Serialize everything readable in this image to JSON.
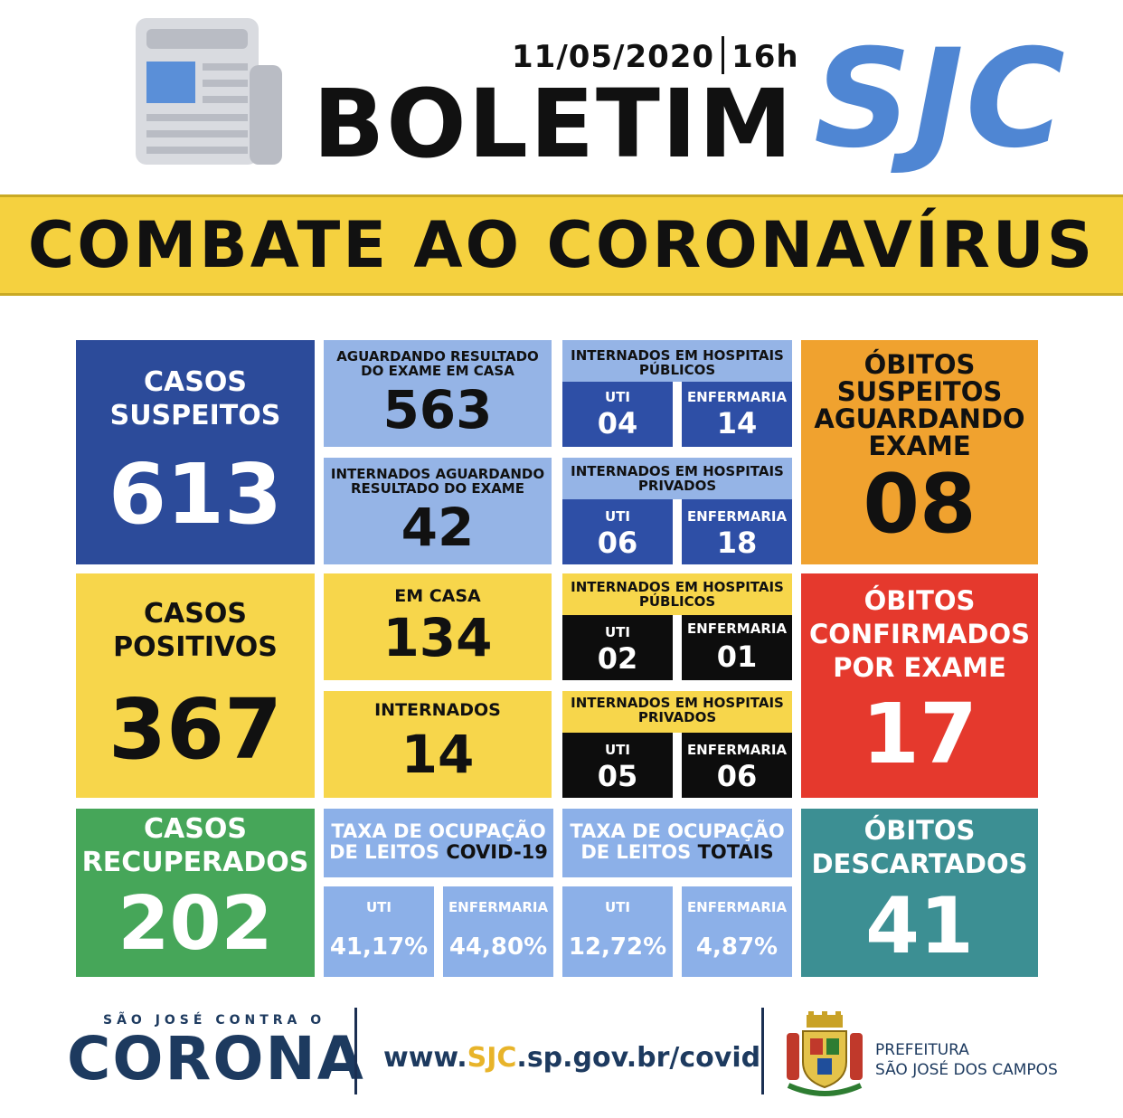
{
  "header": {
    "date": "11/05/2020",
    "time": "16h",
    "title": "BOLETIM",
    "brand": "SJC",
    "banner": "COMBATE AO CORONAVÍRUS",
    "colors": {
      "brand": "#4f86d3",
      "banner": "#f5d13f"
    }
  },
  "suspeitos": {
    "label_line1": "CASOS",
    "label_line2": "SUSPEITOS",
    "value": "613",
    "aguardando_casa_label1": "AGUARDANDO RESULTADO",
    "aguardando_casa_label2": "DO EXAME EM CASA",
    "aguardando_casa_value": "563",
    "internados_aguardando_label1": "INTERNADOS AGUARDANDO",
    "internados_aguardando_label2": "RESULTADO DO EXAME",
    "internados_aguardando_value": "42",
    "publicos_label1": "INTERNADOS EM HOSPITAIS",
    "publicos_label2": "PÚBLICOS",
    "publicos_uti_label": "UTI",
    "publicos_uti_value": "04",
    "publicos_enf_label": "ENFERMARIA",
    "publicos_enf_value": "14",
    "privados_label1": "INTERNADOS EM HOSPITAIS",
    "privados_label2": "PRIVADOS",
    "privados_uti_label": "UTI",
    "privados_uti_value": "06",
    "privados_enf_label": "ENFERMARIA",
    "privados_enf_value": "18"
  },
  "obitos_suspeitos": {
    "line1": "ÓBITOS",
    "line2": "SUSPEITOS",
    "line3": "AGUARDANDO",
    "line4": "EXAME",
    "value": "08"
  },
  "positivos": {
    "label_line1": "CASOS",
    "label_line2": "POSITIVOS",
    "value": "367",
    "em_casa_label": "EM CASA",
    "em_casa_value": "134",
    "internados_label": "INTERNADOS",
    "internados_value": "14",
    "publicos_label1": "INTERNADOS EM HOSPITAIS",
    "publicos_label2": "PÚBLICOS",
    "publicos_uti_label": "UTI",
    "publicos_uti_value": "02",
    "publicos_enf_label": "ENFERMARIA",
    "publicos_enf_value": "01",
    "privados_label1": "INTERNADOS EM HOSPITAIS",
    "privados_label2": "PRIVADOS",
    "privados_uti_label": "UTI",
    "privados_uti_value": "05",
    "privados_enf_label": "ENFERMARIA",
    "privados_enf_value": "06"
  },
  "obitos_confirmados": {
    "line1": "ÓBITOS",
    "line2": "CONFIRMADOS",
    "line3": "POR EXAME",
    "value": "17"
  },
  "recuperados": {
    "label_line1": "CASOS",
    "label_line2": "RECUPERADOS",
    "value": "202"
  },
  "ocupacao_covid": {
    "label_line1": "TAXA DE OCUPAÇÃO",
    "label_line2_a": "DE LEITOS ",
    "label_line2_b": "COVID-19",
    "uti_label": "UTI",
    "uti_value": "41,17%",
    "enf_label": "ENFERMARIA",
    "enf_value": "44,80%"
  },
  "ocupacao_totais": {
    "label_line1": "TAXA DE OCUPAÇÃO",
    "label_line2_a": "DE LEITOS ",
    "label_line2_b": "TOTAIS",
    "uti_label": "UTI",
    "uti_value": "12,72%",
    "enf_label": "ENFERMARIA",
    "enf_value": "4,87%"
  },
  "obitos_descartados": {
    "line1": "ÓBITOS",
    "line2": "DESCARTADOS",
    "value": "41"
  },
  "footer": {
    "campaign_top": "SÃO JOSÉ CONTRA O",
    "campaign_logo": "CORONA",
    "url_prefix": "www.",
    "url_highlight": "SJC",
    "url_suffix": ".sp.gov.br/covid",
    "org_line1": "PREFEITURA",
    "org_line2": "SÃO JOSÉ DOS CAMPOS",
    "crest_icon": "city-crest-icon",
    "newspaper_icon": "newspaper-icon"
  }
}
